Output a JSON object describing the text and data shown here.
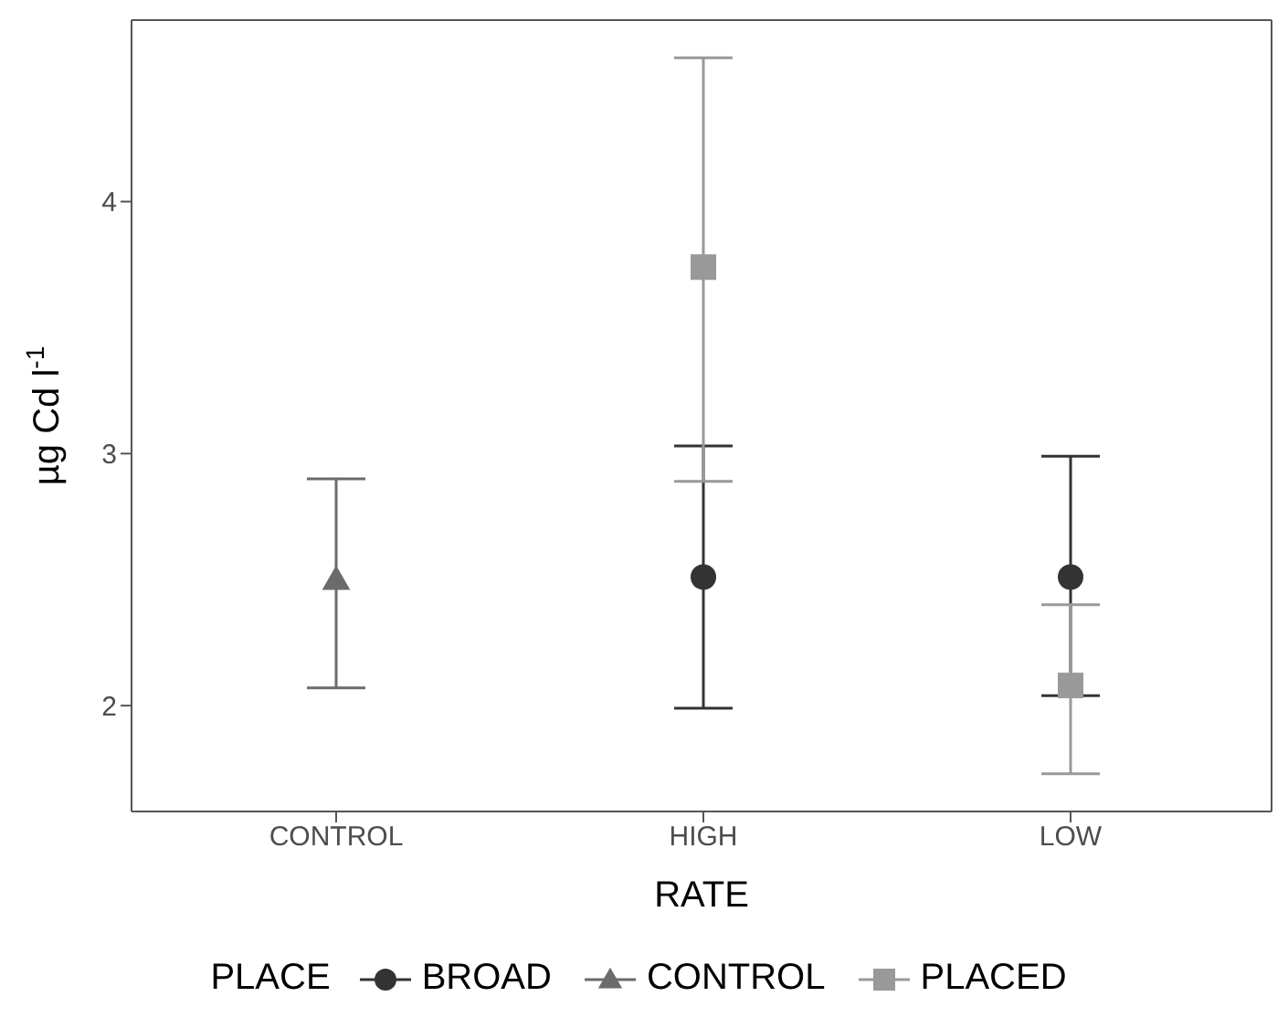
{
  "chart_data": {
    "type": "scatter",
    "xlabel": "RATE",
    "ylabel": "µg Cd l$^{-1}$",
    "legend_title": "PLACE",
    "legend": "bottom",
    "categories": [
      "CONTROL",
      "HIGH",
      "LOW"
    ],
    "ylim": [
      1.58,
      4.72
    ],
    "yticks": [
      2,
      3,
      4
    ],
    "series": [
      {
        "name": "BROAD",
        "color": "#333333",
        "marker": "circle",
        "values": [
          null,
          2.51,
          2.51
        ],
        "errors": [
          null,
          [
            1.99,
            3.03
          ],
          [
            2.04,
            2.99
          ]
        ]
      },
      {
        "name": "CONTROL",
        "color": "#6b6b6b",
        "marker": "triangle",
        "values": [
          2.5,
          null,
          null
        ],
        "errors": [
          [
            2.07,
            2.9
          ],
          null,
          null
        ]
      },
      {
        "name": "PLACED",
        "color": "#999999",
        "marker": "square",
        "values": [
          null,
          3.74,
          2.08
        ],
        "errors": [
          null,
          [
            2.89,
            4.57
          ],
          [
            1.73,
            2.4
          ]
        ]
      }
    ]
  }
}
